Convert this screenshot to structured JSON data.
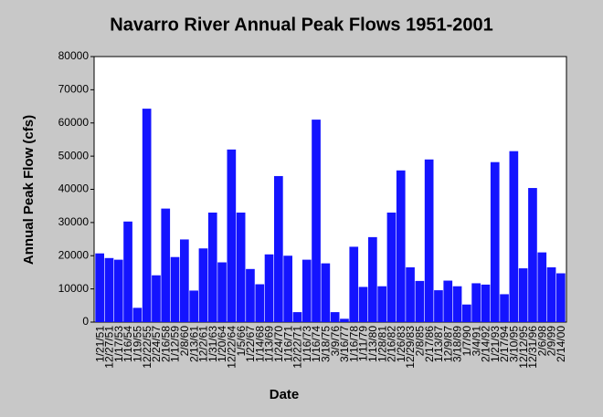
{
  "chart_data": {
    "type": "bar",
    "title": "Navarro River Annual Peak Flows 1951-2001",
    "x_label": "Date",
    "y_label": "Annual Peak Flow (cfs)",
    "color": "#1414ff",
    "categories": [
      "1/21/51",
      "12/27/51",
      "1/17/53",
      "1/16/54",
      "1/19/55",
      "12/22/55",
      "2/24/57",
      "2/16/58",
      "1/12/59",
      "2/8/60",
      "2/13/61",
      "12/2/61",
      "1/31/63",
      "1/20/64",
      "12/22/64",
      "1/5/66",
      "1/22/67",
      "1/14/68",
      "1/13/69",
      "1/24/70",
      "1/16/71",
      "12/22/71",
      "1/16/73",
      "1/16/74",
      "3/18/75",
      "3/9/76",
      "3/16/77",
      "1/16/78",
      "1/11/79",
      "1/13/80",
      "1/28/81",
      "2/16/82",
      "1/26/83",
      "12/29/83",
      "2/8/85",
      "2/17/86",
      "1/13/87",
      "12/9/87",
      "3/18/89",
      "1/7/90",
      "3/4/91",
      "2/14/92",
      "1/21/93",
      "2/17/94",
      "3/10/95",
      "12/12/95",
      "12/31/96",
      "2/6/98",
      "2/9/99",
      "2/14/00"
    ],
    "values": [
      20700,
      19300,
      18800,
      30300,
      4300,
      64300,
      14100,
      34200,
      19600,
      24900,
      9500,
      22200,
      33000,
      18000,
      52000,
      33000,
      16000,
      11400,
      20400,
      44000,
      20000,
      3000,
      18800,
      61000,
      17700,
      3000,
      1000,
      22700,
      10600,
      25600,
      10800,
      33000,
      45700,
      16500,
      12400,
      49000,
      9600,
      12500,
      10800,
      5300,
      11700,
      11300,
      48200,
      8400,
      51500,
      16200,
      40400,
      21000,
      16500,
      14700
    ],
    "ylim": [
      0,
      80000
    ],
    "yticks": [
      0,
      10000,
      20000,
      30000,
      40000,
      50000,
      60000,
      70000,
      80000
    ],
    "grid": false
  }
}
